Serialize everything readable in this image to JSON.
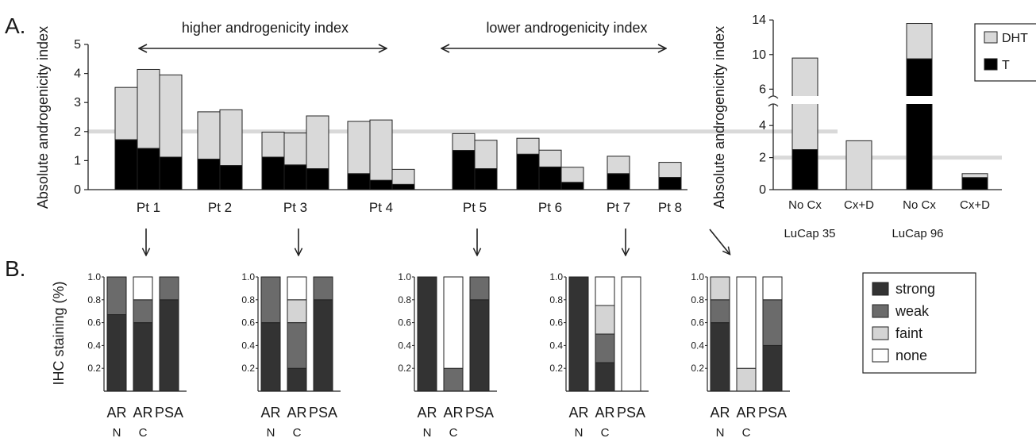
{
  "panel_labels": {
    "a": "A.",
    "b": "B."
  },
  "colors": {
    "T": "#000000",
    "DHT": "#d9d9d9",
    "strong": "#333333",
    "weak": "#6b6b6b",
    "faint": "#d4d4d4",
    "none": "#ffffff",
    "reference_line": "#d9d9d9",
    "stroke": "#222222"
  },
  "chart_data": [
    {
      "type": "bar",
      "stacked": true,
      "ylabel": "Absolute androgenicity index",
      "ylim": [
        0,
        5
      ],
      "yticks": [
        "0",
        "1",
        "2",
        "3",
        "4",
        "5"
      ],
      "reference_line": 2,
      "annotations": {
        "higher": "higher androgenicity index",
        "lower": "lower androgenicity index"
      },
      "groups": [
        {
          "label": "Pt 1",
          "bars": [
            {
              "T": 1.72,
              "DHT": 1.8
            },
            {
              "T": 1.42,
              "DHT": 2.72
            },
            {
              "T": 1.12,
              "DHT": 2.83
            }
          ]
        },
        {
          "label": "Pt 2",
          "bars": [
            {
              "T": 1.05,
              "DHT": 1.63
            },
            {
              "T": 0.83,
              "DHT": 1.92
            }
          ]
        },
        {
          "label": "Pt 3",
          "bars": [
            {
              "T": 1.12,
              "DHT": 0.86
            },
            {
              "T": 0.85,
              "DHT": 1.1
            },
            {
              "T": 0.72,
              "DHT": 1.82
            }
          ]
        },
        {
          "label": "Pt 4",
          "bars": [
            {
              "T": 0.55,
              "DHT": 1.8
            },
            {
              "T": 0.32,
              "DHT": 2.08
            },
            {
              "T": 0.18,
              "DHT": 0.52
            }
          ]
        },
        {
          "label": "Pt 5",
          "bars": [
            {
              "T": 1.35,
              "DHT": 0.58
            },
            {
              "T": 0.72,
              "DHT": 0.98
            }
          ]
        },
        {
          "label": "Pt 6",
          "bars": [
            {
              "T": 1.22,
              "DHT": 0.55
            },
            {
              "T": 0.78,
              "DHT": 0.58
            },
            {
              "T": 0.25,
              "DHT": 0.52
            }
          ]
        },
        {
          "label": "Pt 7",
          "bars": [
            {
              "T": 0.55,
              "DHT": 0.6
            }
          ]
        },
        {
          "label": "Pt 8",
          "bars": [
            {
              "T": 0.42,
              "DHT": 0.52
            }
          ]
        }
      ]
    },
    {
      "type": "bar",
      "stacked": true,
      "broken_axis": true,
      "ylabel": "Absolute androgenicity index",
      "yticks": [
        "0",
        "2",
        "4",
        "6",
        "10",
        "14"
      ],
      "reference_line": 2,
      "categories": [
        "No Cx",
        "Cx+D",
        "No Cx",
        "Cx+D"
      ],
      "group_labels": [
        "LuCap 35",
        "LuCap 96"
      ],
      "series": [
        {
          "name": "T",
          "values": [
            2.5,
            0.0,
            9.5,
            0.75
          ]
        },
        {
          "name": "DHT",
          "values": [
            7.1,
            3.05,
            4.1,
            0.25
          ]
        }
      ],
      "legend": [
        "DHT",
        "T"
      ],
      "legend_position": "top-right"
    },
    {
      "type": "bar",
      "stacked": true,
      "ylabel": "IHC staining (%)",
      "ylim": [
        0,
        1
      ],
      "yticks": [
        "0.2",
        "0.4",
        "0.6",
        "0.8",
        "1.0"
      ],
      "categories": [
        {
          "top": "AR",
          "bottom": "N"
        },
        {
          "top": "AR",
          "bottom": "C"
        },
        {
          "top": "PSA",
          "bottom": ""
        }
      ],
      "legend": [
        "strong",
        "weak",
        "faint",
        "none"
      ],
      "panels": [
        [
          {
            "strong": 0.67,
            "weak": 0.33,
            "faint": 0,
            "none": 0
          },
          {
            "strong": 0.6,
            "weak": 0.2,
            "faint": 0,
            "none": 0.2
          },
          {
            "strong": 0.8,
            "weak": 0.2,
            "faint": 0,
            "none": 0
          }
        ],
        [
          {
            "strong": 0.6,
            "weak": 0.4,
            "faint": 0,
            "none": 0
          },
          {
            "strong": 0.2,
            "weak": 0.4,
            "faint": 0.2,
            "none": 0.2
          },
          {
            "strong": 0.8,
            "weak": 0.2,
            "faint": 0,
            "none": 0
          }
        ],
        [
          {
            "strong": 1.0,
            "weak": 0,
            "faint": 0,
            "none": 0
          },
          {
            "strong": 0,
            "weak": 0.2,
            "faint": 0,
            "none": 0.8
          },
          {
            "strong": 0.8,
            "weak": 0.2,
            "faint": 0,
            "none": 0
          }
        ],
        [
          {
            "strong": 1.0,
            "weak": 0,
            "faint": 0,
            "none": 0
          },
          {
            "strong": 0.25,
            "weak": 0.25,
            "faint": 0.25,
            "none": 0.25
          },
          {
            "strong": 0,
            "weak": 0,
            "faint": 0,
            "none": 1.0
          }
        ],
        [
          {
            "strong": 0.6,
            "weak": 0.2,
            "faint": 0.2,
            "none": 0
          },
          {
            "strong": 0,
            "weak": 0,
            "faint": 0.2,
            "none": 0.8
          },
          {
            "strong": 0.4,
            "weak": 0.4,
            "faint": 0,
            "none": 0.2
          }
        ]
      ]
    }
  ]
}
